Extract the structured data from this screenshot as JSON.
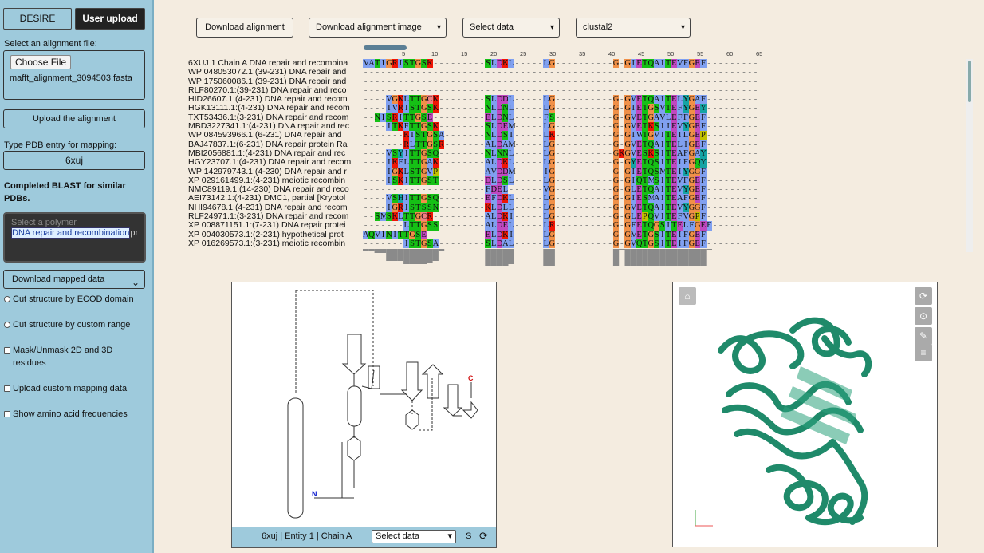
{
  "sidebar": {
    "tabs": [
      "DESIRE",
      "User upload"
    ],
    "select_file_label": "Select an alignment file:",
    "choose_file_label": "Choose File",
    "file_name": "mafft_alignment_3094503.fasta",
    "upload_button": "Upload the alignment",
    "pdb_label": "Type PDB entry for mapping:",
    "pdb_value": "6xuj",
    "blast_status": "Completed BLAST for similar PDBs.",
    "polymer_placeholder": "Select a polymer",
    "polymer_value": "DNA repair and recombination",
    "polymer_suffix": "pr",
    "download_mapped": "Download mapped data",
    "options": [
      {
        "label": "Cut structure by ECOD domain",
        "type": "radio"
      },
      {
        "label": "Cut structure by custom range",
        "type": "radio"
      },
      {
        "label": "Mask/Unmask 2D and 3D residues",
        "type": "checkbox"
      },
      {
        "label": "Upload custom mapping data",
        "type": "checkbox"
      },
      {
        "label": "Show amino acid frequencies",
        "type": "checkbox"
      }
    ]
  },
  "toolbar": {
    "download_alignment": "Download alignment",
    "download_image": "Download alignment image",
    "select_data": "Select data",
    "color_scheme": "clustal2"
  },
  "ruler": [
    "5",
    "10",
    "15",
    "20",
    "25",
    "30",
    "35",
    "40",
    "45",
    "50",
    "55",
    "60",
    "65"
  ],
  "alignment": {
    "names": [
      "6XUJ 1 Chain A DNA repair and recombina",
      "WP 048053072.1:(39-231) DNA repair and",
      "WP 175060086.1:(39-231) DNA repair and",
      "RLF80270.1:(39-231) DNA repair and reco",
      "HID26607.1:(4-231) DNA repair and recom",
      "HGK13111.1:(4-231) DNA repair and recom",
      "TXT53436.1:(3-231) DNA repair and recom",
      "MBD3227341.1:(4-231) DNA repair and rec",
      "WP 084593966.1:(6-231) DNA repair and",
      "BAJ47837.1:(6-231) DNA repair protein Ra",
      "MBI2056881.1:(4-231) DNA repair and rec",
      "HGY23707.1:(4-231) DNA repair and recom",
      "WP 142979743.1:(4-230) DNA repair and r",
      "XP 029161499.1:(4-231) meiotic recombin",
      "NMC89119.1:(14-230) DNA repair and reco",
      "AEI73142.1:(4-231) DMC1, partial [Kryptol",
      "NHI94678.1:(4-231) DNA repair and recom",
      "RLF24971.1:(3-231) DNA repair and recom",
      "XP 008871151.1:(7-231) DNA repair protei",
      "XP 004030573.1:(2-231) hypothetical prot",
      "XP 016269573.1:(3-231) meiotic recombin"
    ],
    "rows": [
      "MATIGRISTGSK.........SLDKL.....LG..........G.GIETQAITEVFGEF.........",
      "....................................................................",
      "....................................................................",
      "....................................................................",
      "....VGKLTTGCK........SLDDL.....LG..........G.GVETQAITELYGAF.........",
      "....IVRISTGSK........NLDNL.....LG..........G.GIETGSVTEFYGEY.........",
      "..NISRITTGSE.........ELDNL.....FS..........G.GVETGAVLEFFGEF.........",
      "....ITKFTTGSK........SLDEM.....LG..........G.GVETKSIIEVYGEF.........",
      ".......KISTGSA.......NLDSI.....LK..........G.GIWTGVITEILGEP.........",
      ".......RLTTGSR.......ALDAM.....LG..........G.GVETQAITELIGEF.........",
      "....VSYITTGSQ........NLNNL.....LG..........GKGVESKSITEAFGAY.........",
      "....IKFLTTGAK........ALDKL.....LG..........G.GYETQSITEIFGQY.........",
      "....IGKLSTGVP........AVDDM.....IG..........G.GIETQSMTEIYGGF.........",
      "....ISKITTGST........DLDSL.....LG..........G.GIQTMSITEVFGEF.........",
      ".....................FDEL......VG..........G.GLETQAITEVYGEF.........",
      "....VSHITTGSQ........EFDKL.....LG..........G.GIESMAITEAFGEF.........",
      "....IGRISTSSN........KLDLL.....LG..........G.GVETQAITEVYGGF.........",
      "..SMSKLTTGCR.........ALDKI.....LG..........G.GLEPQVITEFVGPF.........",
      ".......LTTGSS........ALDEL.....LR..........G.GFETQGSITELFGEF........",
      "AQVINITTGSE..........ELDKI.....LG..........G.GMETGSITEIFGEF.........",
      ".......ISTGSA........SLDAL.....LG..........G.GVQTGSITEIFGEF........."
    ]
  },
  "panel2d": {
    "footer_text": "6xuj | Entity 1 | Chain A",
    "select_data": "Select data",
    "n_label": "N",
    "c_label": "C",
    "s_label": "S",
    "refresh": "⟳"
  },
  "panel3d": {
    "icons": [
      "home-icon",
      "refresh-icon",
      "settings-icon",
      "wrench-icon",
      "menu-icon"
    ],
    "protein_color": "#1f8a6a"
  },
  "colors": {
    "G": "#f09048",
    "hydrophobic": "#80a0f0",
    "polar": "#15c015",
    "positive": "#f01505",
    "negative": "#c048c0",
    "P": "#c0c000",
    "cys": "#f08080",
    "aromatic": "#15a4a4"
  }
}
